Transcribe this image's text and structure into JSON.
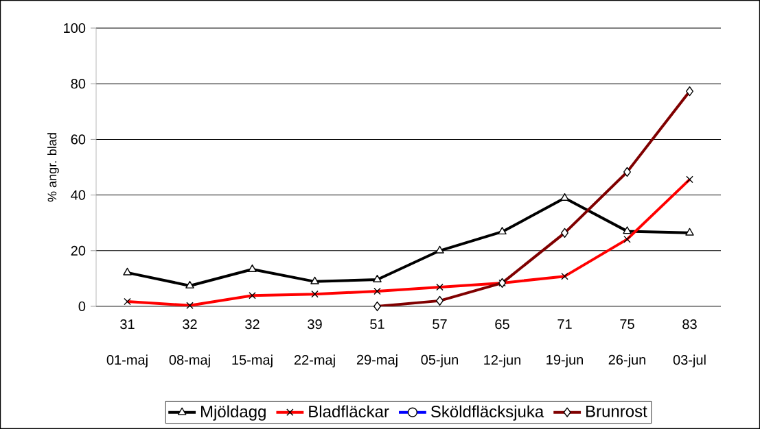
{
  "chart_data": {
    "type": "line",
    "ylabel": "% angr. blad",
    "categories": [
      "31 01-maj",
      "32 08-maj",
      "32 15-maj",
      "39 22-maj",
      "51 29-maj",
      "57 05-jun",
      "65 12-jun",
      "71 19-jun",
      "75 26-jun",
      "83 03-jul"
    ],
    "series": [
      {
        "name": "Mjöldagg",
        "color": "#000000",
        "marker": "triangle",
        "values": [
          12.1,
          7.4,
          13.3,
          8.9,
          9.6,
          20,
          26.8,
          38.9,
          27,
          26.4
        ]
      },
      {
        "name": "Bladfläckar",
        "color": "#ff0000",
        "marker": "cross",
        "values": [
          1.7,
          0.3,
          3.9,
          4.4,
          5.4,
          6.9,
          8.4,
          10.8,
          24.1,
          45.6
        ]
      },
      {
        "name": "Sköldfläcksjuka",
        "color": "#0000ff",
        "marker": "circle",
        "values": [
          null,
          null,
          null,
          null,
          null,
          null,
          null,
          null,
          null,
          null
        ]
      },
      {
        "name": "Brunrost",
        "color": "#800000",
        "marker": "diamond",
        "values": [
          null,
          null,
          null,
          null,
          0,
          2,
          8.4,
          26.4,
          48.3,
          77.3
        ]
      }
    ],
    "ylim": [
      0,
      100
    ],
    "yticks": [
      0,
      20,
      40,
      60,
      80,
      100
    ],
    "grid": "y",
    "legend": "bottom",
    "line_style": "solid"
  }
}
